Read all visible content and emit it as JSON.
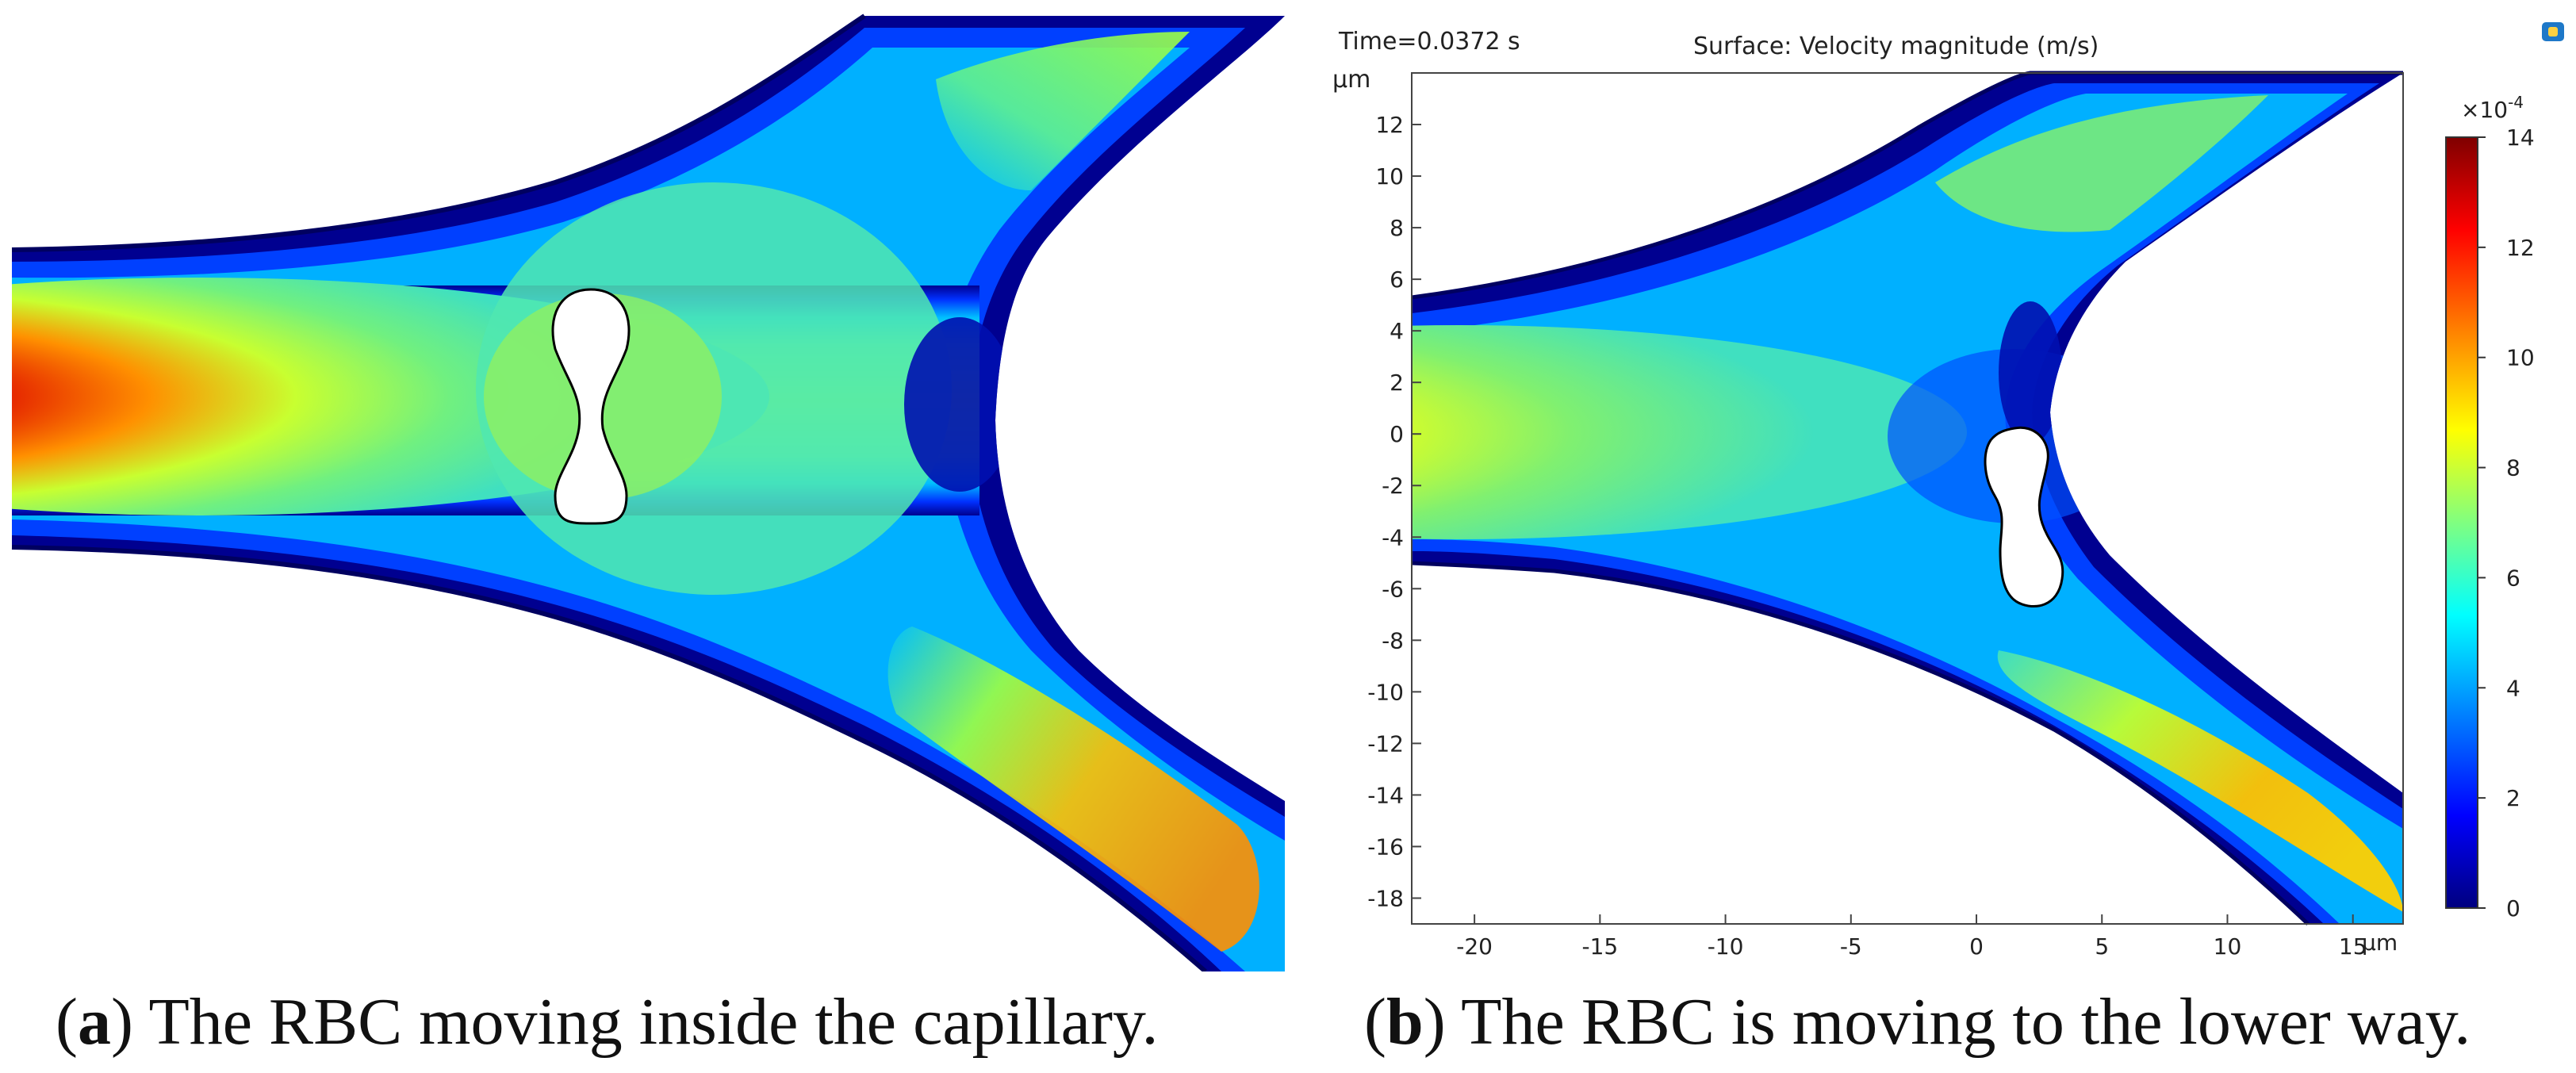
{
  "panel_a": {
    "caption_letter": "a",
    "caption_text": "The RBC moving inside the capillary."
  },
  "panel_b": {
    "caption_letter": "b",
    "caption_text": "The RBC is moving to the lower way.",
    "time_label": "Time=0.0372 s",
    "surface_title": "Surface: Velocity magnitude (m/s)",
    "unit_label": "µm",
    "x_unit_label": "µm",
    "colorbar_exponent": "×10",
    "colorbar_exponent_power": "-4"
  },
  "chart_data": {
    "type": "heatmap",
    "title": "Surface: Velocity magnitude (m/s)",
    "time": "Time=0.0372 s",
    "xlabel": "µm",
    "ylabel": "µm",
    "xlim": [
      -22.5,
      17
    ],
    "ylim": [
      -19,
      14
    ],
    "x_ticks": [
      -20,
      -15,
      -10,
      -5,
      0,
      5,
      10,
      15
    ],
    "y_ticks": [
      12,
      10,
      8,
      6,
      4,
      2,
      0,
      -2,
      -4,
      -6,
      -8,
      -10,
      -12,
      -14,
      -16,
      -18
    ],
    "colorbar": {
      "min": 0,
      "max": 14,
      "multiplier": "×10^-4",
      "ticks": [
        14,
        12,
        10,
        8,
        6,
        4,
        2,
        0
      ],
      "colormap": [
        "#00007f",
        "#0000ff",
        "#0080ff",
        "#00ffff",
        "#80ff80",
        "#ffff00",
        "#ff8000",
        "#ff0000",
        "#7f0000"
      ]
    }
  }
}
